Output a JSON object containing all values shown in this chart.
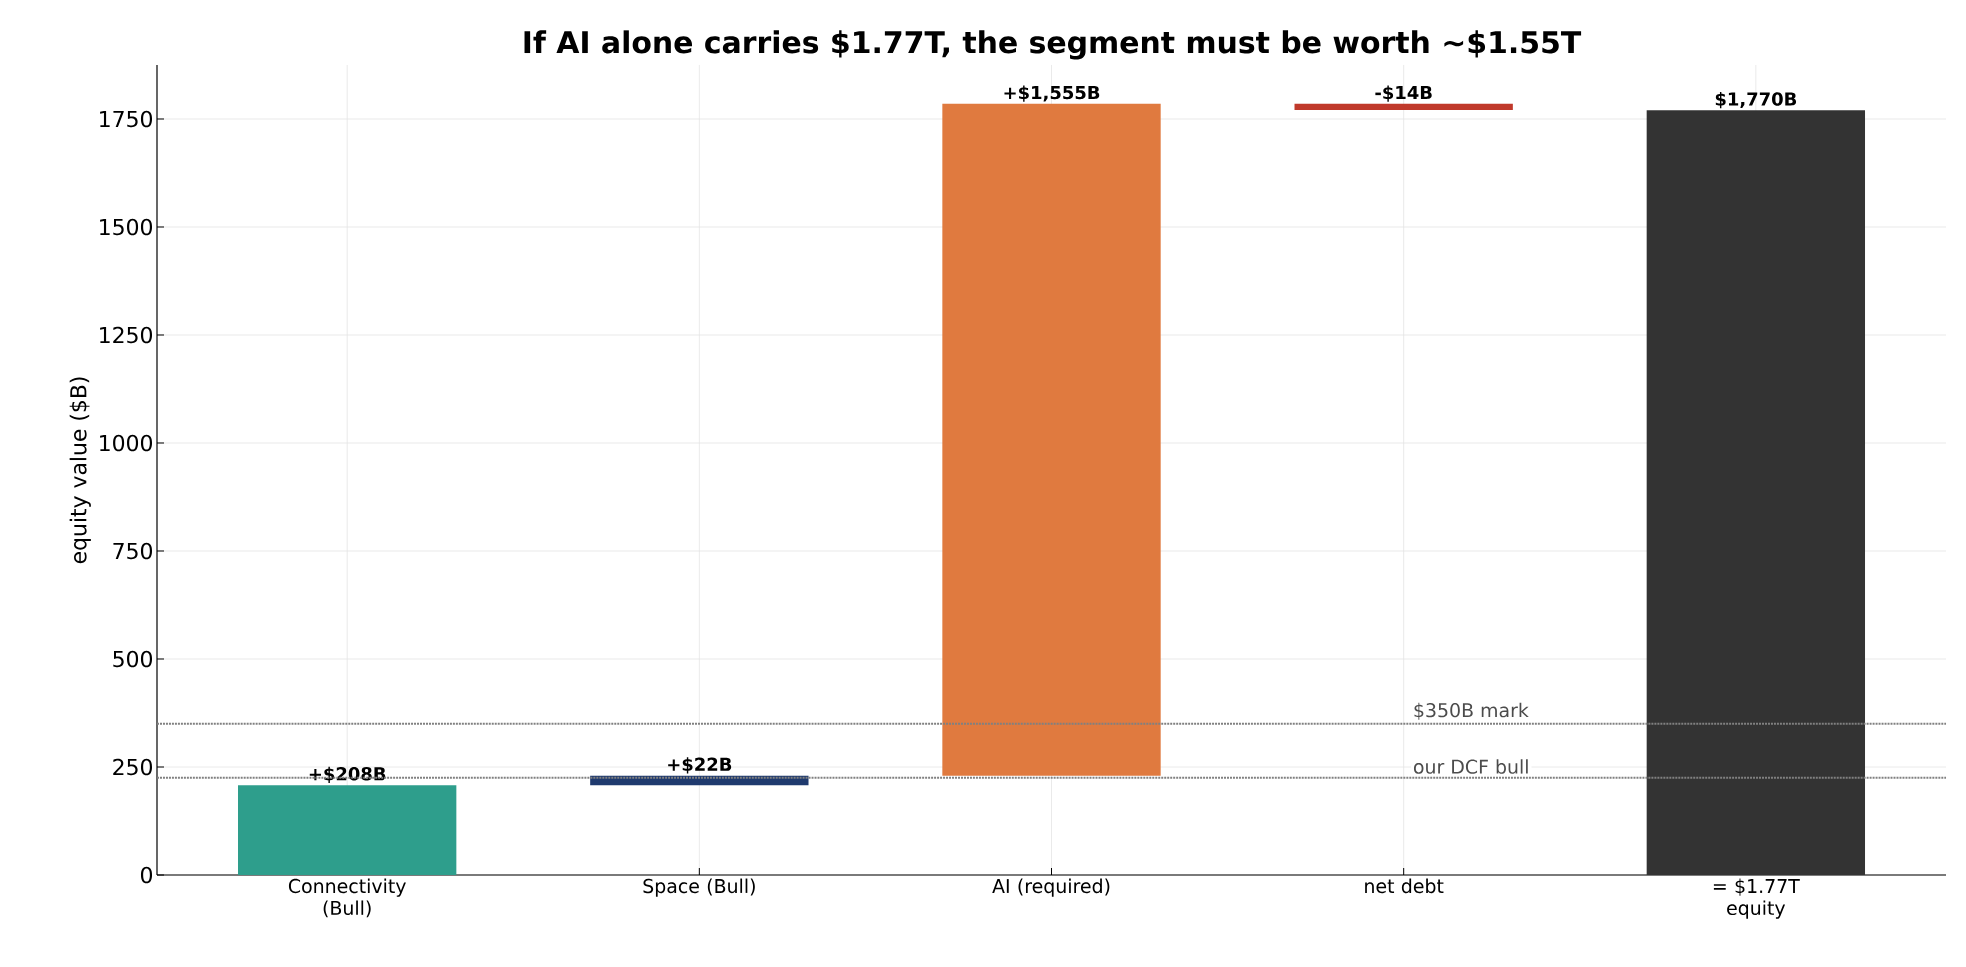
{
  "chart_data": {
    "type": "bar",
    "title": "If AI alone carries $1.77T, the segment must be worth ~$1.55T",
    "ylabel": "equity value ($B)",
    "categories": [
      "Connectivity (Bull)",
      "Space (Bull)",
      "AI (required)",
      "net debt",
      "= $1.77T equity"
    ],
    "values": [
      208,
      22,
      1555,
      -14,
      1770
    ],
    "base": [
      0,
      208,
      230,
      1785,
      0
    ],
    "colors": [
      "#2e9e8c",
      "#1f3a6e",
      "#e07a3f",
      "#c0392b",
      "#333333"
    ],
    "value_labels": [
      "+$208B",
      "+$22B",
      "+$1,555B",
      "-$14B",
      "$1,770B"
    ],
    "ylim": [
      0,
      1875
    ],
    "yticks": [
      0,
      250,
      500,
      750,
      1000,
      1250,
      1500,
      1750
    ],
    "grid": true,
    "ref_lines": [
      {
        "axis": "y",
        "value": 350,
        "label": "$350B mark",
        "color": "#808080",
        "line_style": "dotted"
      },
      {
        "axis": "y",
        "value": 225,
        "label": "our DCF bull",
        "color": "#808080",
        "line_style": "dotted"
      }
    ]
  }
}
